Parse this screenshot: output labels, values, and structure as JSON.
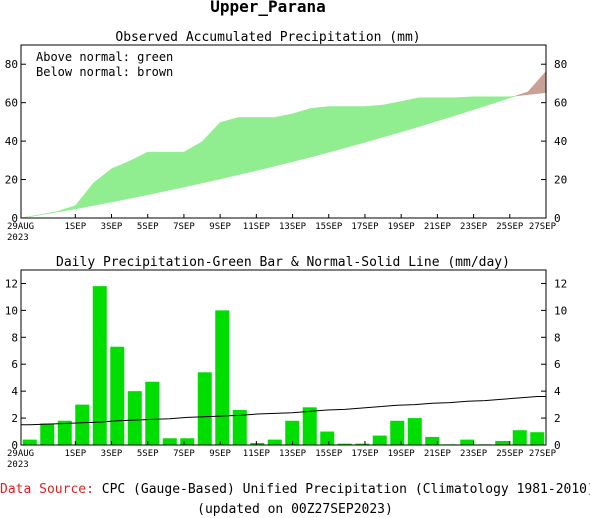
{
  "title": "Upper_Parana",
  "colors": {
    "green_fill": "#90ee90",
    "brown_fill": "#c8a096",
    "bar_green": "#00dd00",
    "normal_line": "#000000",
    "source_label": "#e02020"
  },
  "footer": {
    "source_label": "Data Source:",
    "source_text": "CPC (Gauge-Based) Unified Precipitation (Climatology 1981-2010)",
    "updated": "(updated on 00Z27SEP2023)"
  },
  "chart_data": [
    {
      "type": "area",
      "title": "Observed Accumulated Precipitation (mm)",
      "annotations": [
        "Above normal: green",
        "Below normal: brown"
      ],
      "ylim": [
        0,
        90
      ],
      "yticks": [
        0,
        20,
        40,
        60,
        80
      ],
      "xlim": [
        0,
        29
      ],
      "xtick_positions": [
        0,
        3,
        5,
        7,
        9,
        11,
        13,
        15,
        17,
        19,
        21,
        23,
        25,
        27,
        29
      ],
      "xtick_labels": [
        "29AUG",
        "1SEP",
        "3SEP",
        "5SEP",
        "7SEP",
        "9SEP",
        "11SEP",
        "13SEP",
        "15SEP",
        "17SEP",
        "19SEP",
        "21SEP",
        "23SEP",
        "25SEP",
        "27SEP"
      ],
      "start_year": "2023",
      "x": [
        0,
        1,
        2,
        3,
        4,
        5,
        6,
        7,
        8,
        9,
        10,
        11,
        12,
        13,
        14,
        15,
        16,
        17,
        18,
        19,
        20,
        21,
        22,
        23,
        24,
        25,
        26,
        27,
        28,
        29
      ],
      "series": [
        {
          "name": "observed",
          "values": [
            0,
            1.6,
            3.4,
            6.4,
            18.2,
            25.6,
            29.6,
            34.3,
            34.3,
            34.3,
            39.7,
            49.7,
            52.3,
            52.3,
            52.3,
            54.2,
            57.0,
            58.0,
            58.0,
            58.0,
            58.8,
            60.6,
            62.6,
            62.6,
            62.6,
            63.1,
            63.1,
            63.1,
            64.2,
            65.2
          ]
        },
        {
          "name": "normal",
          "values": [
            0,
            1.5,
            3.1,
            4.7,
            6.5,
            8.3,
            10.2,
            12.1,
            14.1,
            16.1,
            18.2,
            20.3,
            22.5,
            24.7,
            27.0,
            29.3,
            31.7,
            34.2,
            36.8,
            39.4,
            42.1,
            44.8,
            47.6,
            50.5,
            53.4,
            56.4,
            59.4,
            62.5,
            65.6,
            76.3
          ]
        }
      ]
    },
    {
      "type": "bar",
      "title": "Daily Precipitation-Green Bar & Normal-Solid Line (mm/day)",
      "ylim": [
        0,
        13
      ],
      "yticks": [
        0,
        2,
        4,
        6,
        8,
        10,
        12
      ],
      "xlim": [
        0,
        29
      ],
      "xtick_positions": [
        0,
        3,
        5,
        7,
        9,
        11,
        13,
        15,
        17,
        19,
        21,
        23,
        25,
        27,
        29
      ],
      "xtick_labels": [
        "29AUG",
        "1SEP",
        "3SEP",
        "5SEP",
        "7SEP",
        "9SEP",
        "11SEP",
        "13SEP",
        "15SEP",
        "17SEP",
        "19SEP",
        "21SEP",
        "23SEP",
        "25SEP",
        "27SEP"
      ],
      "start_year": "2023",
      "values": [
        0.4,
        1.6,
        1.8,
        3.0,
        11.8,
        7.3,
        4.0,
        4.7,
        0.5,
        0.5,
        5.4,
        10.0,
        2.6,
        0.15,
        0.4,
        1.8,
        2.8,
        1.0,
        0.1,
        0.1,
        0.7,
        1.8,
        2.0,
        0.6,
        0.05,
        0.4,
        0.05,
        0.3,
        1.1,
        0.95
      ],
      "normal_line": [
        1.5,
        1.55,
        1.6,
        1.65,
        1.7,
        1.8,
        1.85,
        1.9,
        1.95,
        2.05,
        2.1,
        2.15,
        2.2,
        2.3,
        2.35,
        2.4,
        2.5,
        2.6,
        2.65,
        2.75,
        2.85,
        2.95,
        3.0,
        3.1,
        3.15,
        3.25,
        3.3,
        3.4,
        3.5,
        3.6
      ]
    }
  ]
}
